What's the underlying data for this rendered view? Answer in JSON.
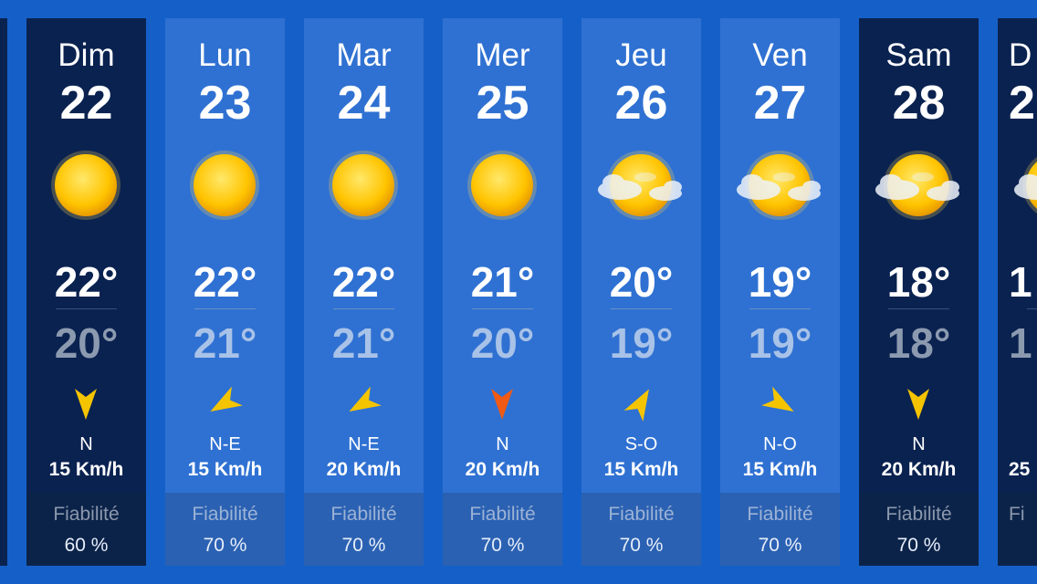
{
  "days": [
    {
      "day": "Dim",
      "date": "22",
      "max": "22°",
      "min": "20°",
      "wind_dir": "N",
      "wind_speed": "15 Km/h",
      "reliability_label": "Fiabilité",
      "reliability": "60 %",
      "arrow_color": "#f5c400"
    },
    {
      "day": "Lun",
      "date": "23",
      "max": "22°",
      "min": "21°",
      "wind_dir": "N-E",
      "wind_speed": "15 Km/h",
      "reliability_label": "Fiabilité",
      "reliability": "70 %",
      "arrow_color": "#f5c400"
    },
    {
      "day": "Mar",
      "date": "24",
      "max": "22°",
      "min": "21°",
      "wind_dir": "N-E",
      "wind_speed": "20 Km/h",
      "reliability_label": "Fiabilité",
      "reliability": "70 %",
      "arrow_color": "#f5c400"
    },
    {
      "day": "Mer",
      "date": "25",
      "max": "21°",
      "min": "20°",
      "wind_dir": "N",
      "wind_speed": "20 Km/h",
      "reliability_label": "Fiabilité",
      "reliability": "70 %",
      "arrow_color": "#f05a14"
    },
    {
      "day": "Jeu",
      "date": "26",
      "max": "20°",
      "min": "19°",
      "wind_dir": "S-O",
      "wind_speed": "15 Km/h",
      "reliability_label": "Fiabilité",
      "reliability": "70 %",
      "arrow_color": "#f5c400"
    },
    {
      "day": "Ven",
      "date": "27",
      "max": "19°",
      "min": "19°",
      "wind_dir": "N-O",
      "wind_speed": "15 Km/h",
      "reliability_label": "Fiabilité",
      "reliability": "70 %",
      "arrow_color": "#f5c400"
    },
    {
      "day": "Sam",
      "date": "28",
      "max": "18°",
      "min": "18°",
      "wind_dir": "N",
      "wind_speed": "20 Km/h",
      "reliability_label": "Fiabilité",
      "reliability": "70 %",
      "arrow_color": "#f5c400"
    },
    {
      "day": "D",
      "date": "2",
      "max": "1",
      "min": "1",
      "wind_speed": "25",
      "reliability_label": "Fi"
    }
  ]
}
